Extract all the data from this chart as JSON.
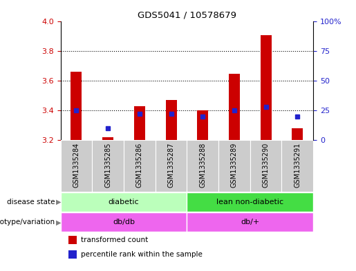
{
  "title": "GDS5041 / 10578679",
  "samples": [
    "GSM1335284",
    "GSM1335285",
    "GSM1335286",
    "GSM1335287",
    "GSM1335288",
    "GSM1335289",
    "GSM1335290",
    "GSM1335291"
  ],
  "transformed_count": [
    3.66,
    3.22,
    3.43,
    3.47,
    3.4,
    3.65,
    3.91,
    3.28
  ],
  "percentile_rank": [
    25,
    10,
    22,
    22,
    20,
    25,
    28,
    20
  ],
  "ylim_left": [
    3.2,
    4.0
  ],
  "ylim_right": [
    0,
    100
  ],
  "yticks_left": [
    3.2,
    3.4,
    3.6,
    3.8,
    4.0
  ],
  "yticks_right": [
    0,
    25,
    50,
    75,
    100
  ],
  "ytick_right_labels": [
    "0",
    "25",
    "50",
    "75",
    "100%"
  ],
  "bar_bottom": 3.2,
  "bar_color": "#cc0000",
  "dot_color": "#2222cc",
  "disease_state_groups": [
    {
      "label": "diabetic",
      "start": 0,
      "end": 4,
      "color": "#bbffbb"
    },
    {
      "label": "lean non-diabetic",
      "start": 4,
      "end": 8,
      "color": "#44dd44"
    }
  ],
  "genotype_groups": [
    {
      "label": "db/db",
      "start": 0,
      "end": 4,
      "color": "#ee66ee"
    },
    {
      "label": "db/+",
      "start": 4,
      "end": 8,
      "color": "#ee66ee"
    }
  ],
  "row_labels": [
    "disease state",
    "genotype/variation"
  ],
  "legend_items": [
    {
      "label": "transformed count",
      "color": "#cc0000"
    },
    {
      "label": "percentile rank within the sample",
      "color": "#2222cc"
    }
  ],
  "axis_color_left": "#cc0000",
  "axis_color_right": "#2222cc",
  "sample_bg_color": "#cccccc",
  "bar_width": 0.35,
  "dot_size": 25
}
